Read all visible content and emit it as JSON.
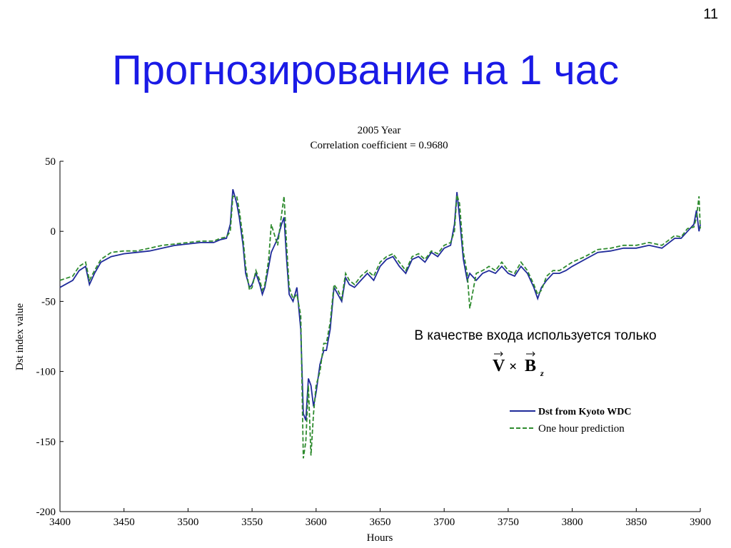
{
  "slide_number": "11",
  "slide_title": "Прогнозирование на 1 час",
  "annotation": "В качестве входа используется только",
  "formula": [
    "V",
    "×",
    "B",
    "z"
  ],
  "chart_data": {
    "type": "line",
    "title": "2005 Year",
    "subtitle": "Correlation coefficient = 0.9680",
    "x_label": "Hours",
    "y_label": "Dst index value",
    "xlim": [
      3400,
      3900
    ],
    "ylim": [
      -200,
      50
    ],
    "xticks": [
      3400,
      3450,
      3500,
      3550,
      3600,
      3650,
      3700,
      3750,
      3800,
      3850,
      3900
    ],
    "yticks": [
      50,
      0,
      -50,
      -100,
      -150,
      -200
    ],
    "legend_position": "right",
    "x": [
      3400,
      3410,
      3415,
      3420,
      3423,
      3427,
      3432,
      3440,
      3450,
      3460,
      3470,
      3480,
      3490,
      3500,
      3510,
      3520,
      3525,
      3530,
      3533,
      3535,
      3538,
      3540,
      3543,
      3545,
      3548,
      3550,
      3553,
      3556,
      3558,
      3560,
      3563,
      3565,
      3570,
      3573,
      3575,
      3577,
      3579,
      3582,
      3585,
      3588,
      3590,
      3592,
      3594,
      3596,
      3598,
      3600,
      3603,
      3606,
      3608,
      3611,
      3614,
      3617,
      3620,
      3623,
      3626,
      3630,
      3635,
      3640,
      3645,
      3650,
      3655,
      3660,
      3665,
      3670,
      3675,
      3680,
      3685,
      3690,
      3695,
      3700,
      3705,
      3708,
      3710,
      3712,
      3715,
      3718,
      3720,
      3725,
      3730,
      3735,
      3740,
      3745,
      3750,
      3755,
      3760,
      3765,
      3770,
      3773,
      3776,
      3780,
      3785,
      3790,
      3795,
      3800,
      3810,
      3820,
      3830,
      3840,
      3850,
      3860,
      3870,
      3880,
      3885,
      3890,
      3895,
      3897,
      3899,
      3900
    ],
    "series": [
      {
        "name": "Dst from Kyoto WDC",
        "color": "#1f2a9a",
        "style": "solid",
        "values": [
          -40,
          -35,
          -28,
          -25,
          -38,
          -30,
          -22,
          -18,
          -16,
          -15,
          -14,
          -12,
          -10,
          -9,
          -8,
          -8,
          -6,
          -5,
          5,
          30,
          20,
          10,
          -10,
          -30,
          -40,
          -38,
          -30,
          -38,
          -45,
          -40,
          -25,
          -15,
          -5,
          5,
          10,
          -20,
          -45,
          -50,
          -40,
          -70,
          -130,
          -135,
          -105,
          -110,
          -125,
          -115,
          -95,
          -85,
          -85,
          -70,
          -40,
          -45,
          -50,
          -33,
          -38,
          -40,
          -35,
          -30,
          -35,
          -25,
          -20,
          -18,
          -25,
          -30,
          -20,
          -18,
          -22,
          -15,
          -18,
          -12,
          -10,
          5,
          28,
          10,
          -20,
          -35,
          -30,
          -35,
          -30,
          -28,
          -30,
          -25,
          -30,
          -32,
          -25,
          -30,
          -40,
          -48,
          -40,
          -35,
          -30,
          -30,
          -28,
          -25,
          -20,
          -15,
          -14,
          -12,
          -12,
          -10,
          -12,
          -5,
          -5,
          0,
          5,
          15,
          0,
          5
        ]
      },
      {
        "name": "One hour prediction",
        "color": "#2e8b2e",
        "style": "dashed",
        "values": [
          -35,
          -32,
          -25,
          -22,
          -35,
          -28,
          -20,
          -15,
          -14,
          -14,
          -12,
          -10,
          -9,
          -8,
          -7,
          -7,
          -5,
          -4,
          0,
          25,
          25,
          15,
          -5,
          -25,
          -42,
          -40,
          -28,
          -35,
          -42,
          -38,
          -20,
          5,
          -10,
          12,
          25,
          -10,
          -40,
          -48,
          -45,
          -60,
          -162,
          -150,
          -110,
          -160,
          -130,
          -110,
          -100,
          -80,
          -80,
          -65,
          -38,
          -42,
          -48,
          -30,
          -35,
          -38,
          -32,
          -28,
          -32,
          -22,
          -18,
          -16,
          -22,
          -28,
          -18,
          -16,
          -20,
          -14,
          -16,
          -10,
          -8,
          0,
          26,
          20,
          -15,
          -30,
          -55,
          -30,
          -28,
          -25,
          -28,
          -22,
          -28,
          -30,
          -22,
          -28,
          -38,
          -45,
          -42,
          -32,
          -28,
          -28,
          -25,
          -22,
          -18,
          -13,
          -12,
          -10,
          -10,
          -8,
          -10,
          -3,
          -4,
          2,
          3,
          10,
          25,
          2
        ]
      }
    ]
  }
}
